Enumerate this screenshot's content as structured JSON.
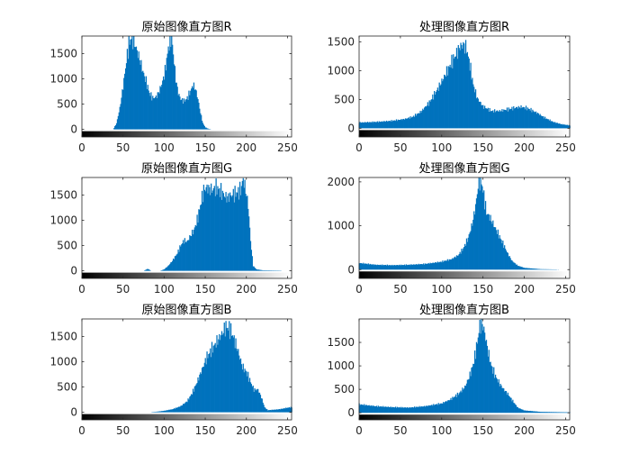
{
  "chart_data": [
    {
      "type": "histogram",
      "title": "原始图像直方图R",
      "xlim": [
        0,
        255
      ],
      "ylim": [
        -150,
        1850
      ],
      "xticks": [
        0,
        50,
        100,
        150,
        200,
        250
      ],
      "yticks": [
        0,
        500,
        1000,
        1500
      ],
      "bar_color": "#0072BD",
      "profile": [
        [
          0,
          0
        ],
        [
          38,
          0
        ],
        [
          42,
          120
        ],
        [
          46,
          420
        ],
        [
          50,
          850
        ],
        [
          54,
          1350
        ],
        [
          57,
          1700
        ],
        [
          60,
          1820
        ],
        [
          63,
          1760
        ],
        [
          66,
          1600
        ],
        [
          70,
          1400
        ],
        [
          74,
          1150
        ],
        [
          78,
          950
        ],
        [
          82,
          720
        ],
        [
          86,
          620
        ],
        [
          90,
          640
        ],
        [
          94,
          760
        ],
        [
          98,
          950
        ],
        [
          101,
          1150
        ],
        [
          104,
          1500
        ],
        [
          107,
          1800
        ],
        [
          109,
          1820
        ],
        [
          111,
          1500
        ],
        [
          114,
          1000
        ],
        [
          117,
          720
        ],
        [
          120,
          600
        ],
        [
          124,
          560
        ],
        [
          128,
          620
        ],
        [
          132,
          760
        ],
        [
          135,
          880
        ],
        [
          138,
          800
        ],
        [
          141,
          600
        ],
        [
          144,
          330
        ],
        [
          147,
          120
        ],
        [
          150,
          40
        ],
        [
          154,
          10
        ],
        [
          158,
          0
        ],
        [
          255,
          0
        ]
      ]
    },
    {
      "type": "histogram",
      "title": "处理图像直方图R",
      "xlim": [
        0,
        255
      ],
      "ylim": [
        -150,
        1600
      ],
      "xticks": [
        0,
        50,
        100,
        150,
        200,
        250
      ],
      "yticks": [
        0,
        500,
        1000,
        1500
      ],
      "bar_color": "#0072BD",
      "profile": [
        [
          0,
          100
        ],
        [
          20,
          110
        ],
        [
          40,
          130
        ],
        [
          55,
          160
        ],
        [
          65,
          200
        ],
        [
          75,
          290
        ],
        [
          85,
          450
        ],
        [
          95,
          680
        ],
        [
          105,
          950
        ],
        [
          112,
          1150
        ],
        [
          118,
          1300
        ],
        [
          122,
          1420
        ],
        [
          126,
          1450
        ],
        [
          130,
          1380
        ],
        [
          134,
          1100
        ],
        [
          138,
          760
        ],
        [
          143,
          520
        ],
        [
          150,
          380
        ],
        [
          160,
          300
        ],
        [
          170,
          300
        ],
        [
          180,
          330
        ],
        [
          190,
          360
        ],
        [
          197,
          370
        ],
        [
          205,
          340
        ],
        [
          215,
          270
        ],
        [
          225,
          180
        ],
        [
          235,
          110
        ],
        [
          245,
          70
        ],
        [
          255,
          50
        ]
      ]
    },
    {
      "type": "histogram",
      "title": "原始图像直方图G",
      "xlim": [
        0,
        255
      ],
      "ylim": [
        -150,
        1850
      ],
      "xticks": [
        0,
        50,
        100,
        150,
        200,
        250
      ],
      "yticks": [
        0,
        500,
        1000,
        1500
      ],
      "bar_color": "#0072BD",
      "profile": [
        [
          0,
          0
        ],
        [
          75,
          0
        ],
        [
          80,
          40
        ],
        [
          84,
          0
        ],
        [
          95,
          0
        ],
        [
          100,
          30
        ],
        [
          105,
          100
        ],
        [
          110,
          200
        ],
        [
          116,
          350
        ],
        [
          120,
          500
        ],
        [
          124,
          600
        ],
        [
          128,
          580
        ],
        [
          132,
          700
        ],
        [
          136,
          800
        ],
        [
          140,
          1000
        ],
        [
          144,
          1300
        ],
        [
          148,
          1600
        ],
        [
          152,
          1650
        ],
        [
          158,
          1600
        ],
        [
          164,
          1650
        ],
        [
          170,
          1550
        ],
        [
          176,
          1450
        ],
        [
          182,
          1500
        ],
        [
          188,
          1550
        ],
        [
          193,
          1600
        ],
        [
          196,
          1820
        ],
        [
          199,
          1600
        ],
        [
          202,
          1300
        ],
        [
          205,
          600
        ],
        [
          208,
          100
        ],
        [
          212,
          30
        ],
        [
          220,
          10
        ],
        [
          255,
          0
        ]
      ]
    },
    {
      "type": "histogram",
      "title": "处理图像直方图G",
      "xlim": [
        0,
        255
      ],
      "ylim": [
        -200,
        2100
      ],
      "xticks": [
        0,
        50,
        100,
        150,
        200,
        250
      ],
      "yticks": [
        0,
        1000,
        2000
      ],
      "bar_color": "#0072BD",
      "profile": [
        [
          0,
          150
        ],
        [
          20,
          110
        ],
        [
          40,
          100
        ],
        [
          60,
          110
        ],
        [
          80,
          130
        ],
        [
          100,
          180
        ],
        [
          112,
          240
        ],
        [
          120,
          330
        ],
        [
          126,
          480
        ],
        [
          132,
          720
        ],
        [
          137,
          1050
        ],
        [
          141,
          1450
        ],
        [
          144,
          1900
        ],
        [
          147,
          2100
        ],
        [
          150,
          1800
        ],
        [
          154,
          1300
        ],
        [
          158,
          1200
        ],
        [
          162,
          1050
        ],
        [
          166,
          900
        ],
        [
          170,
          750
        ],
        [
          175,
          560
        ],
        [
          180,
          360
        ],
        [
          185,
          200
        ],
        [
          192,
          90
        ],
        [
          200,
          40
        ],
        [
          220,
          10
        ],
        [
          255,
          0
        ]
      ]
    },
    {
      "type": "histogram",
      "title": "原始图像直方图B",
      "xlim": [
        0,
        255
      ],
      "ylim": [
        -150,
        1850
      ],
      "xticks": [
        0,
        50,
        100,
        150,
        200,
        250
      ],
      "yticks": [
        0,
        500,
        1000,
        1500
      ],
      "bar_color": "#0072BD",
      "profile": [
        [
          0,
          0
        ],
        [
          80,
          0
        ],
        [
          90,
          10
        ],
        [
          100,
          30
        ],
        [
          110,
          60
        ],
        [
          120,
          120
        ],
        [
          128,
          220
        ],
        [
          134,
          380
        ],
        [
          140,
          600
        ],
        [
          146,
          850
        ],
        [
          152,
          1100
        ],
        [
          158,
          1250
        ],
        [
          164,
          1400
        ],
        [
          170,
          1550
        ],
        [
          175,
          1700
        ],
        [
          180,
          1650
        ],
        [
          185,
          1450
        ],
        [
          190,
          1200
        ],
        [
          195,
          900
        ],
        [
          200,
          800
        ],
        [
          205,
          600
        ],
        [
          209,
          450
        ],
        [
          214,
          450
        ],
        [
          218,
          300
        ],
        [
          222,
          100
        ],
        [
          226,
          40
        ],
        [
          240,
          60
        ],
        [
          250,
          90
        ],
        [
          255,
          100
        ]
      ]
    },
    {
      "type": "histogram",
      "title": "处理图像直方图B",
      "xlim": [
        0,
        255
      ],
      "ylim": [
        -150,
        2000
      ],
      "xticks": [
        0,
        50,
        100,
        150,
        200,
        250
      ],
      "yticks": [
        0,
        500,
        1000,
        1500
      ],
      "bar_color": "#0072BD",
      "profile": [
        [
          0,
          180
        ],
        [
          20,
          140
        ],
        [
          40,
          120
        ],
        [
          60,
          110
        ],
        [
          80,
          140
        ],
        [
          100,
          200
        ],
        [
          110,
          280
        ],
        [
          120,
          400
        ],
        [
          128,
          550
        ],
        [
          134,
          800
        ],
        [
          139,
          1100
        ],
        [
          143,
          1500
        ],
        [
          146,
          1850
        ],
        [
          149,
          1900
        ],
        [
          152,
          1700
        ],
        [
          156,
          1300
        ],
        [
          160,
          1000
        ],
        [
          165,
          780
        ],
        [
          170,
          620
        ],
        [
          175,
          500
        ],
        [
          180,
          400
        ],
        [
          186,
          250
        ],
        [
          192,
          110
        ],
        [
          200,
          50
        ],
        [
          220,
          20
        ],
        [
          255,
          10
        ]
      ]
    }
  ]
}
